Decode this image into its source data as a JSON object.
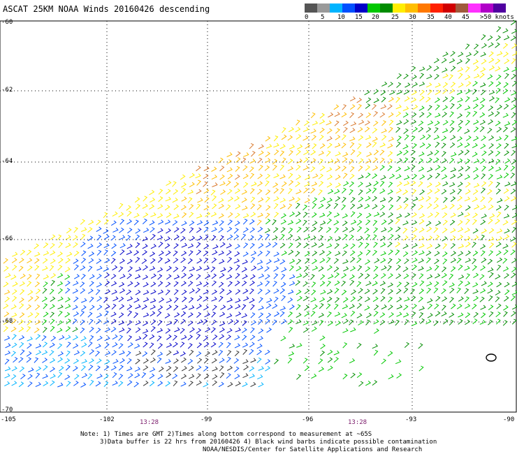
{
  "title": "ASCAT 25KM NOAA Winds 20160426 descending",
  "legend": {
    "colors": [
      "#555555",
      "#9a9a9a",
      "#00b4ff",
      "#0050ff",
      "#0000c8",
      "#00c800",
      "#008c00",
      "#ffee00",
      "#ffbe00",
      "#ff7800",
      "#ff2000",
      "#d00000",
      "#a05a3c",
      "#ff30ff",
      "#b000c8",
      "#5000a0"
    ],
    "labels": [
      "0",
      "5",
      "10",
      "15",
      "20",
      "25",
      "30",
      "35",
      "40",
      "45",
      ">50 knots"
    ]
  },
  "latitudes": [
    "-60",
    "-62",
    "-64",
    "-66",
    "-68",
    "-70"
  ],
  "longitudes": [
    "-105",
    "-102",
    "-99",
    "-96",
    "-93",
    "-90"
  ],
  "pass_times": [
    "13:28",
    "13:28"
  ],
  "notes": [
    "Note: 1) Times are GMT 2)Times along bottom correspond to measurement at ~65S",
    "3)Data buffer is 22 hrs from 20160426 4) Black wind barbs indicate possible contamination",
    "NOAA/NESDIS/Center for Satellite Applications and Research"
  ]
}
